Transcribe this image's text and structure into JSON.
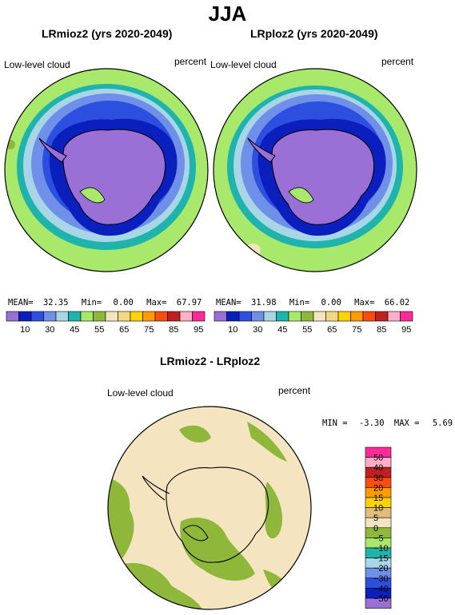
{
  "figure": {
    "title": "JJA"
  },
  "panels": [
    {
      "title": "LRmioz2 (yrs 2020-2049)",
      "variable": "Low-level cloud",
      "units": "percent",
      "stats": {
        "mean_label": "MEAN=",
        "mean": "32.35",
        "min_label": "Min=",
        "min": "0.00",
        "max_label": "Max=",
        "max": "67.97"
      }
    },
    {
      "title": "LRploz2 (yrs 2020-2049)",
      "variable": "Low-level cloud",
      "units": "percent",
      "stats": {
        "mean_label": "MEAN=",
        "mean": "31.98",
        "min_label": "Min=",
        "min": "0.00",
        "max_label": "Max=",
        "max": "66.02"
      }
    }
  ],
  "colorbar_top": {
    "colors": [
      "#9a6fd6",
      "#0a1fbd",
      "#2d4fe0",
      "#6f8fe8",
      "#a8d6e6",
      "#1fb3ad",
      "#a8e86a",
      "#8fb83a",
      "#f4e4c0",
      "#f2d882",
      "#ffd200",
      "#ff9a00",
      "#ff4a10",
      "#c02020",
      "#ffb0c8",
      "#ff2a9a"
    ],
    "labels": [
      "10",
      "30",
      "45",
      "55",
      "65",
      "75",
      "85",
      "95"
    ]
  },
  "difference": {
    "title": "LRmioz2 - LRploz2",
    "variable": "Low-level cloud",
    "units": "percent",
    "stats": {
      "min_label": "MIN =",
      "min": "-3.30",
      "max_label": "MAX =",
      "max": "5.69"
    }
  },
  "colorbar_diff": {
    "colors": [
      "#ff2a9a",
      "#ffb0c8",
      "#c02020",
      "#ff4a10",
      "#ff9a00",
      "#ffd200",
      "#e0be7a",
      "#f4e4c0",
      "#8fb83a",
      "#a8e86a",
      "#1fb3ad",
      "#a8d6e6",
      "#6f8fe8",
      "#2d4fe0",
      "#0a1fbd",
      "#9a6fd6"
    ],
    "labels": [
      "50",
      "40",
      "30",
      "20",
      "15",
      "10",
      "5",
      "0",
      "−5",
      "−10",
      "−15",
      "−20",
      "−30",
      "−40",
      "−50"
    ]
  },
  "map_colors": {
    "ocean_outer": "#a8e86a",
    "ice_edge": "#1fb3ad",
    "band_light": "#a8d6e6",
    "band_mid": "#6f8fe8",
    "band_blue": "#2d4fe0",
    "band_dark": "#0a1fbd",
    "continent": "#9a6fd6",
    "diff_bg": "#f4e4c0",
    "diff_patch": "#8fb83a"
  }
}
